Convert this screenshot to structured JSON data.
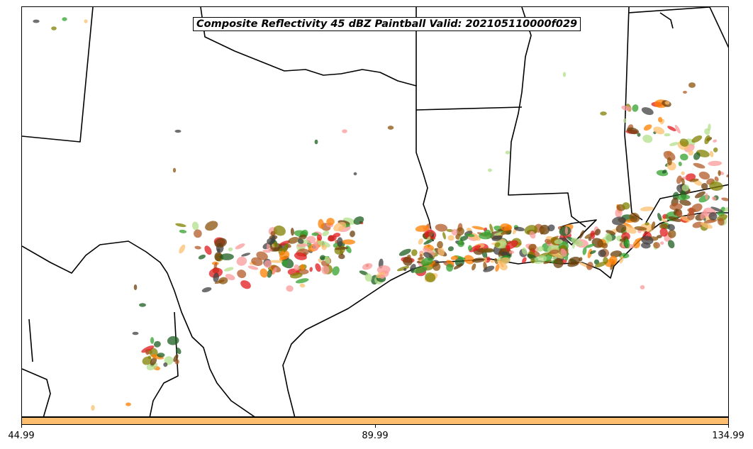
{
  "title": "Composite Reflectivity 45 dBZ Paintball Valid: 202105110000f029",
  "colorbar": {
    "color": "#fdbf6f",
    "ticks": [
      "44.99",
      "89.99",
      "134.99"
    ]
  },
  "colors": {
    "members": [
      "#e31a1c",
      "#fb9a99",
      "#ff7f00",
      "#fdbf6f",
      "#33a02c",
      "#b2df8a",
      "#6a3d0a",
      "#8c510a",
      "#b15928",
      "#808000",
      "#1b5e20",
      "#404040"
    ],
    "boundaries": "#000000",
    "background": "#ffffff"
  }
}
